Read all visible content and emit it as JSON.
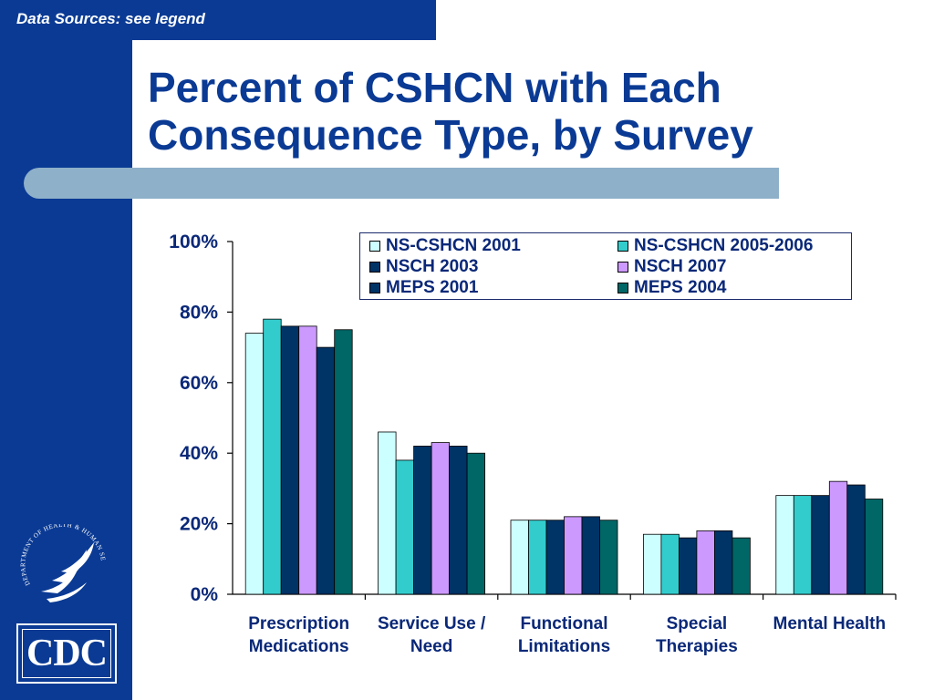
{
  "slide": {
    "source_note": "Data Sources: see legend",
    "title_line1": "Percent of CSHCN with Each",
    "title_line2": "Consequence Type, by Survey"
  },
  "logos": {
    "cdc_text": "CDC",
    "hhs_seal_text": "DEPARTMENT OF HEALTH & HUMAN SERVICES · USA"
  },
  "colors": {
    "slide_blue": "#0a3a94",
    "divider": "#8eb0c9"
  },
  "chart_data": {
    "type": "bar",
    "title": "",
    "xlabel": "",
    "ylabel": "",
    "ylim": [
      0,
      100
    ],
    "yticks": [
      "0%",
      "20%",
      "40%",
      "60%",
      "80%",
      "100%"
    ],
    "grid": false,
    "legend_position": "top-right",
    "categories": [
      [
        "Prescription",
        "Medications"
      ],
      [
        "Service Use /",
        "Need"
      ],
      [
        "Functional",
        "Limitations"
      ],
      [
        "Special",
        "Therapies"
      ],
      [
        "Mental Health"
      ]
    ],
    "series": [
      {
        "name": "NS-CSHCN 2001",
        "color": "#ccffff",
        "values": [
          74,
          46,
          21,
          17,
          28
        ]
      },
      {
        "name": "NS-CSHCN 2005-2006",
        "color": "#33cccc",
        "values": [
          78,
          38,
          21,
          17,
          28
        ]
      },
      {
        "name": "NSCH 2003",
        "color": "#003366",
        "values": [
          76,
          42,
          21,
          16,
          28
        ]
      },
      {
        "name": "NSCH 2007",
        "color": "#cc99ff",
        "values": [
          76,
          43,
          22,
          18,
          32
        ]
      },
      {
        "name": "MEPS 2001",
        "color": "#003366",
        "values": [
          70,
          42,
          22,
          18,
          31
        ]
      },
      {
        "name": "MEPS 2004",
        "color": "#006666",
        "values": [
          75,
          40,
          21,
          16,
          27
        ]
      }
    ]
  }
}
